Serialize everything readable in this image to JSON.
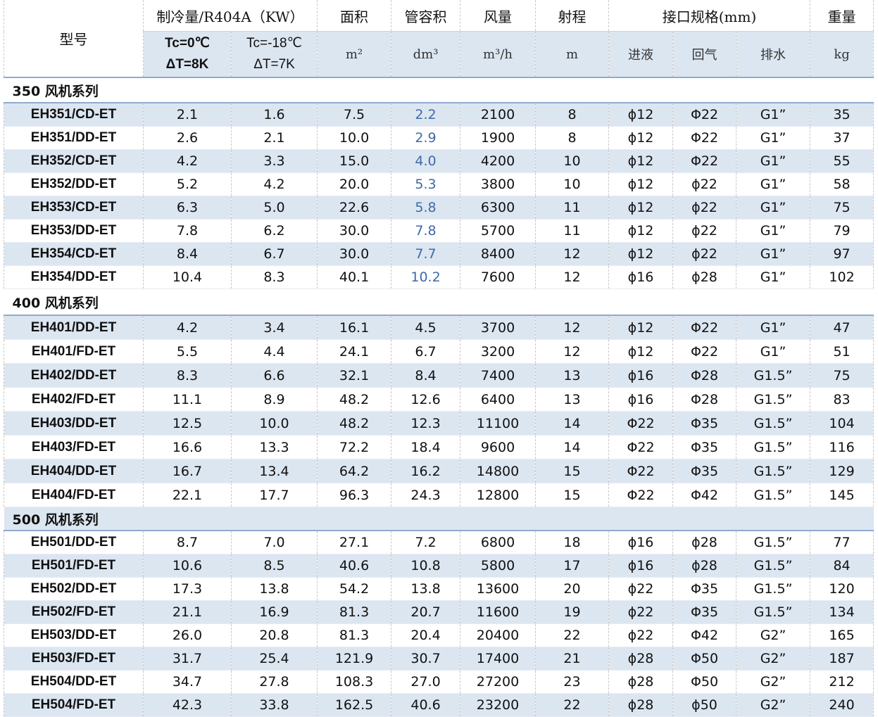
{
  "header": {
    "model": "型号",
    "cooling": "制冷量/R404A（KW）",
    "area": "面积",
    "tube": "管容积",
    "air": "风量",
    "throw": "射程",
    "conn": "接口规格(mm)",
    "weight": "重量"
  },
  "subheader": [
    [
      "Tc=0℃",
      "ΔT=8K"
    ],
    [
      "Tc=-18℃",
      "ΔT=7K"
    ],
    "m²",
    "dm³",
    "m³/h",
    "m",
    "进液",
    "回气",
    "排水",
    "kg"
  ],
  "groups": [
    {
      "title": "350 风机系列",
      "rows": [
        [
          "EH351/CD-ET",
          "2.1",
          "1.6",
          "7.5",
          "2.2",
          "2100",
          "8",
          "ϕ12",
          "Φ22",
          "G1”",
          "35"
        ],
        [
          "EH351/DD-ET",
          "2.6",
          "2.1",
          "10.0",
          "2.9",
          "1900",
          "8",
          "ϕ12",
          "Φ22",
          "G1”",
          "37"
        ],
        [
          "EH352/CD-ET",
          "4.2",
          "3.3",
          "15.0",
          "4.0",
          "4200",
          "10",
          "ϕ12",
          "Φ22",
          "G1”",
          "55"
        ],
        [
          "EH352/DD-ET",
          "5.2",
          "4.2",
          "20.0",
          "5.3",
          "3800",
          "10",
          "ϕ12",
          "ϕ22",
          "G1”",
          "58"
        ],
        [
          "EH353/CD-ET",
          "6.3",
          "5.0",
          "22.6",
          "5.8",
          "6300",
          "11",
          "ϕ12",
          "ϕ22",
          "G1”",
          "75"
        ],
        [
          "EH353/DD-ET",
          "7.8",
          "6.2",
          "30.0",
          "7.8",
          "5700",
          "11",
          "ϕ12",
          "ϕ22",
          "G1”",
          "79"
        ],
        [
          "EH354/CD-ET",
          "8.4",
          "6.7",
          "30.0",
          "7.7",
          "8400",
          "12",
          "ϕ12",
          "ϕ22",
          "G1”",
          "97"
        ],
        [
          "EH354/DD-ET",
          "10.4",
          "8.3",
          "40.1",
          "10.2",
          "7600",
          "12",
          "ϕ16",
          "ϕ28",
          "G1”",
          "102"
        ]
      ]
    },
    {
      "title": "400 风机系列",
      "rows": [
        [
          "EH401/DD-ET",
          "4.2",
          "3.4",
          "16.1",
          "4.5",
          "3700",
          "12",
          "ϕ12",
          "Φ22",
          "G1”",
          "47"
        ],
        [
          "EH401/FD-ET",
          "5.5",
          "4.4",
          "24.1",
          "6.7",
          "3200",
          "12",
          "ϕ12",
          "Φ22",
          "G1”",
          "51"
        ],
        [
          "EH402/DD-ET",
          "8.3",
          "6.6",
          "32.1",
          "8.4",
          "7400",
          "13",
          "ϕ16",
          "Φ28",
          "G1.5”",
          "75"
        ],
        [
          "EH402/FD-ET",
          "11.1",
          "8.9",
          "48.2",
          "12.6",
          "6400",
          "13",
          "ϕ16",
          "Φ28",
          "G1.5”",
          "83"
        ],
        [
          "EH403/DD-ET",
          "12.5",
          "10.0",
          "48.2",
          "12.3",
          "11100",
          "14",
          "Φ22",
          "Φ35",
          "G1.5”",
          "104"
        ],
        [
          "EH403/FD-ET",
          "16.6",
          "13.3",
          "72.2",
          "18.4",
          "9600",
          "14",
          "Φ22",
          "Φ35",
          "G1.5”",
          "116"
        ],
        [
          "EH404/DD-ET",
          "16.7",
          "13.4",
          "64.2",
          "16.2",
          "14800",
          "15",
          "Φ22",
          "Φ35",
          "G1.5”",
          "129"
        ],
        [
          "EH404/FD-ET",
          "22.1",
          "17.7",
          "96.3",
          "24.3",
          "12800",
          "15",
          "Φ22",
          "Φ42",
          "G1.5”",
          "145"
        ]
      ]
    },
    {
      "title": "500 风机系列",
      "rows": [
        [
          "EH501/DD-ET",
          "8.7",
          "7.0",
          "27.1",
          "7.2",
          "6800",
          "18",
          "ϕ16",
          "ϕ28",
          "G1.5”",
          "77"
        ],
        [
          "EH501/FD-ET",
          "10.6",
          "8.5",
          "40.6",
          "10.8",
          "5800",
          "17",
          "ϕ16",
          "ϕ28",
          "G1.5”",
          "84"
        ],
        [
          "EH502/DD-ET",
          "17.3",
          "13.8",
          "54.2",
          "13.8",
          "13600",
          "20",
          "ϕ22",
          "Φ35",
          "G1.5”",
          "120"
        ],
        [
          "EH502/FD-ET",
          "21.1",
          "16.9",
          "81.3",
          "20.7",
          "11600",
          "19",
          "ϕ22",
          "Φ35",
          "G1.5”",
          "134"
        ],
        [
          "EH503/DD-ET",
          "26.0",
          "20.8",
          "81.3",
          "20.4",
          "20400",
          "22",
          "ϕ22",
          "Φ42",
          "G2”",
          "165"
        ],
        [
          "EH503/FD-ET",
          "31.7",
          "25.4",
          "121.9",
          "30.7",
          "17400",
          "21",
          "ϕ28",
          "Φ50",
          "G2”",
          "187"
        ],
        [
          "EH504/DD-ET",
          "34.7",
          "27.8",
          "108.3",
          "27.0",
          "27200",
          "23",
          "ϕ28",
          "Φ50",
          "G2”",
          "212"
        ],
        [
          "EH504/FD-ET",
          "42.3",
          "33.8",
          "162.5",
          "40.6",
          "23200",
          "22",
          "ϕ28",
          "ϕ50",
          "G2”",
          "240"
        ]
      ]
    }
  ]
}
